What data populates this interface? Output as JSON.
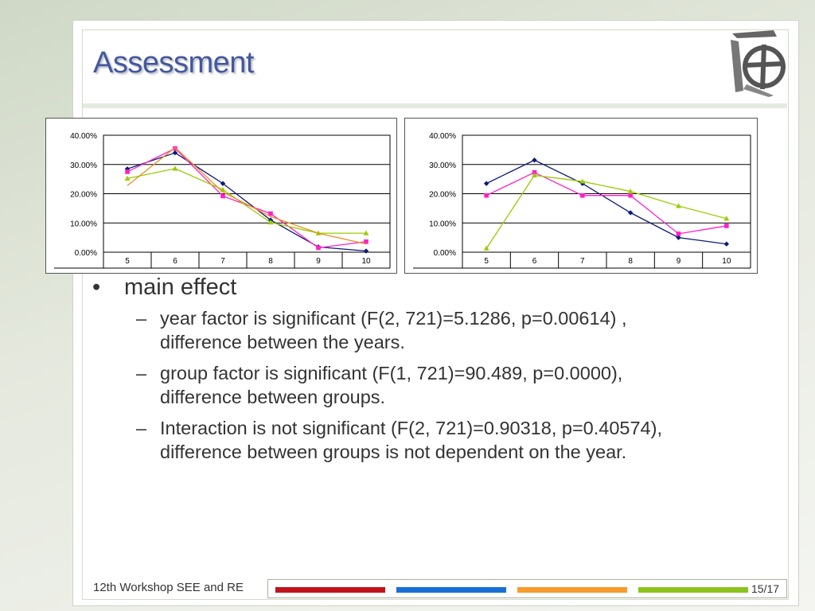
{
  "slide": {
    "title": "Assessment",
    "footer": "12th Workshop SEE and RE",
    "page": "15/17",
    "footer_bar_colors": [
      "#c0141c",
      "#1a6fd6",
      "#f79a2a",
      "#8cc21c"
    ]
  },
  "content": {
    "bullet": "main effect",
    "subitems": [
      {
        "line1": "year factor is significant (F(2, 721)=5.1286, p=0.00614) ,",
        "line2": "difference between the years."
      },
      {
        "line1": "group factor is significant (F(1, 721)=90.489, p=0.0000),",
        "line2": "difference between groups."
      },
      {
        "line1": "Interaction is not significant (F(2, 721)=0.90318, p=0.40574),",
        "line2": "difference between groups is not dependent on the year."
      }
    ]
  },
  "chart_data": [
    {
      "type": "line",
      "categories": [
        "5",
        "6",
        "7",
        "8",
        "9",
        "10"
      ],
      "y_ticks": [
        "0.00%",
        "10.00%",
        "20.00%",
        "30.00%",
        "40.00%"
      ],
      "ylim": [
        0,
        40
      ],
      "grid": true,
      "series": [
        {
          "color": "#0b1a78",
          "marker": "diamond",
          "values": [
            28.5,
            34,
            23.5,
            11,
            1.8,
            0.4
          ]
        },
        {
          "color": "#ff20c8",
          "marker": "square",
          "values": [
            27.5,
            35.5,
            19.2,
            13.2,
            1.5,
            3.6
          ]
        },
        {
          "color": "#99cc00",
          "marker": "triangle",
          "values": [
            25.2,
            28.6,
            21.4,
            10.2,
            6.5,
            6.5
          ]
        },
        {
          "color": "#e8901e",
          "marker": "none",
          "values": [
            22.8,
            35.8,
            20.6,
            12.2,
            6.5,
            2.8
          ]
        }
      ]
    },
    {
      "type": "line",
      "categories": [
        "5",
        "6",
        "7",
        "8",
        "9",
        "10"
      ],
      "y_ticks": [
        "0.00%",
        "10.00%",
        "20.00%",
        "30.00%",
        "40.00%"
      ],
      "ylim": [
        0,
        40
      ],
      "grid": true,
      "series": [
        {
          "color": "#0b1a78",
          "marker": "diamond",
          "values": [
            23.5,
            31.5,
            23.5,
            13.5,
            5,
            2.8
          ]
        },
        {
          "color": "#ff20c8",
          "marker": "square",
          "values": [
            19.4,
            27.3,
            19.4,
            19.4,
            6.3,
            9
          ]
        },
        {
          "color": "#99cc00",
          "marker": "triangle",
          "values": [
            1.3,
            26.3,
            24.2,
            20.8,
            15.8,
            11.5
          ]
        }
      ]
    }
  ]
}
